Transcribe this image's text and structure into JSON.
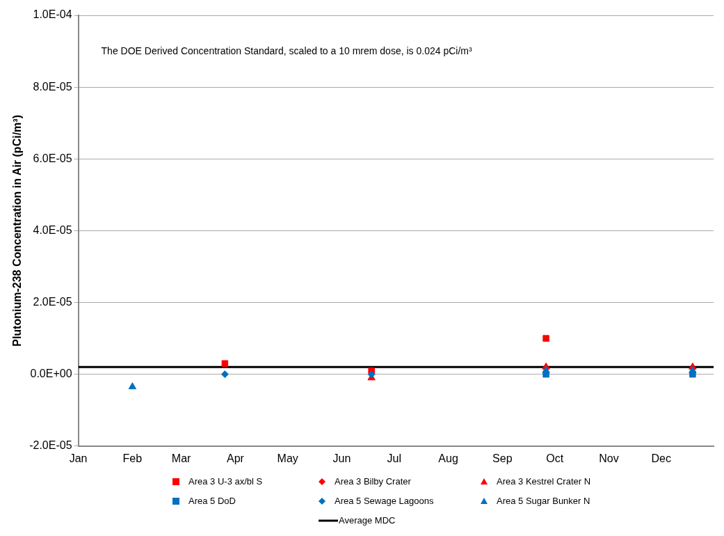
{
  "chart_data": {
    "type": "scatter",
    "ylabel": "Plutonium-238 Concentration in Air (pCi/m³)",
    "annotations": [
      "The DOE Derived Concentration Standard, scaled to a 10 mrem dose, is 0.024 pCi/m³"
    ],
    "xlim": [
      "--01-01",
      "--12-31"
    ],
    "xticks": [
      {
        "value": "--01-01",
        "label": "Jan"
      },
      {
        "value": "--02-01",
        "label": "Feb"
      },
      {
        "value": "--03-01",
        "label": "Mar"
      },
      {
        "value": "--04-01",
        "label": "Apr"
      },
      {
        "value": "--05-01",
        "label": "May"
      },
      {
        "value": "--06-01",
        "label": "Jun"
      },
      {
        "value": "--07-01",
        "label": "Jul"
      },
      {
        "value": "--08-01",
        "label": "Aug"
      },
      {
        "value": "--09-01",
        "label": "Sep"
      },
      {
        "value": "--10-01",
        "label": "Oct"
      },
      {
        "value": "--11-01",
        "label": "Nov"
      },
      {
        "value": "--12-01",
        "label": "Dec"
      }
    ],
    "ylim": [
      -2e-05,
      0.0001
    ],
    "yticks": [
      {
        "value": -2e-05,
        "label": "-2.0E-05"
      },
      {
        "value": 0,
        "label": "0.0E+00"
      },
      {
        "value": 2e-05,
        "label": "2.0E-05"
      },
      {
        "value": 4e-05,
        "label": "4.0E-05"
      },
      {
        "value": 6e-05,
        "label": "6.0E-05"
      },
      {
        "value": 8e-05,
        "label": "8.0E-05"
      },
      {
        "value": 0.0001,
        "label": "1.0E-04"
      }
    ],
    "grid": "y",
    "legend": "bottom",
    "series": [
      {
        "name": "Area 3 U-3 ax/bl S",
        "color": "#ff0000",
        "marker": "square",
        "x": [
          "--03-26",
          "--06-18",
          "--09-26"
        ],
        "values": [
          3e-06,
          1e-06,
          1e-05
        ]
      },
      {
        "name": "Area 3 Bilby Crater",
        "color": "#ff0000",
        "marker": "diamond"
      },
      {
        "name": "Area 3 Kestrel Crater N",
        "color": "#ff0000",
        "marker": "triangle",
        "x": [
          "--06-18",
          "--09-26",
          "--12-19"
        ],
        "values": [
          -1e-06,
          2e-06,
          2e-06
        ]
      },
      {
        "name": "Area 5 DoD",
        "color": "#0070c0",
        "marker": "square",
        "x": [
          "--09-26",
          "--12-19"
        ],
        "values": [
          0,
          0
        ]
      },
      {
        "name": "Area 5 Sewage Lagoons",
        "color": "#0070c0",
        "marker": "diamond",
        "x": [
          "--03-26",
          "--06-18"
        ],
        "values": [
          0,
          0
        ]
      },
      {
        "name": "Area 5 Sugar Bunker N",
        "color": "#0070c0",
        "marker": "triangle",
        "x": [
          "--02-01",
          "--09-26",
          "--12-19"
        ],
        "values": [
          -3.5e-06,
          1e-06,
          1e-06
        ]
      },
      {
        "name": "Average MDC",
        "color": "#000000",
        "type": "line",
        "marker": "none",
        "x": [
          "--01-01",
          "--12-31"
        ],
        "values": [
          2e-06,
          2e-06
        ]
      }
    ]
  }
}
